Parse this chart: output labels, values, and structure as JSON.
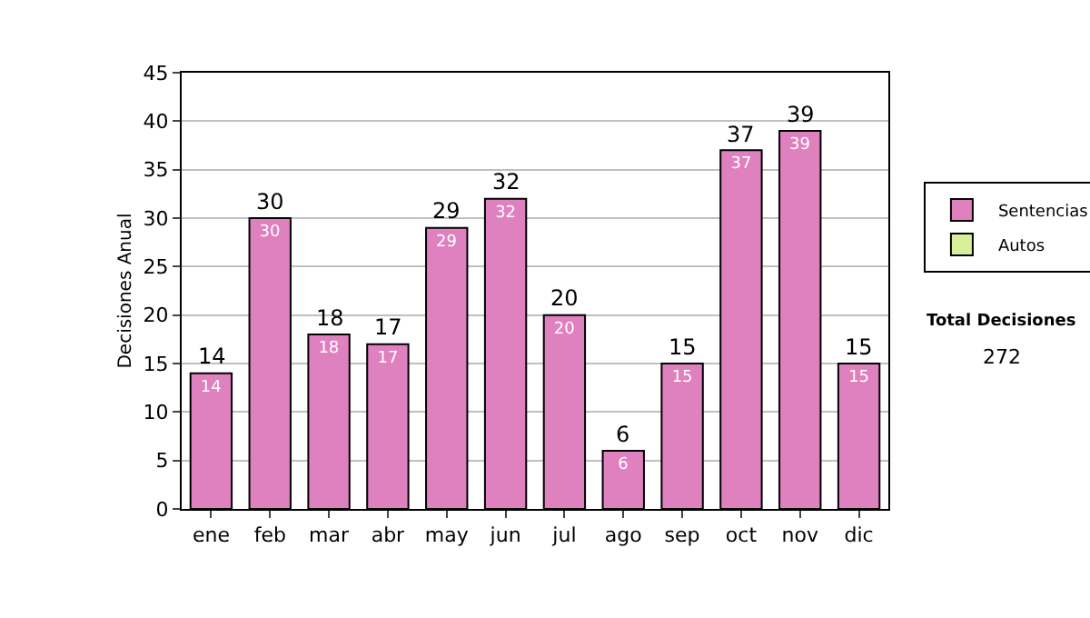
{
  "chart_data": {
    "type": "bar",
    "stacked": true,
    "ylabel": "Decisiones Anual",
    "categories": [
      "ene",
      "feb",
      "mar",
      "abr",
      "may",
      "jun",
      "jul",
      "ago",
      "sep",
      "oct",
      "nov",
      "dic"
    ],
    "series": [
      {
        "name": "Sentencias",
        "color": "#df80bf",
        "values": [
          14,
          30,
          18,
          17,
          29,
          32,
          20,
          6,
          15,
          37,
          39,
          15
        ],
        "value_labels": [
          "14",
          "30",
          "18",
          "17",
          "29",
          "32",
          "20",
          "6",
          "15",
          "37",
          "39",
          "15"
        ]
      },
      {
        "name": "Autos",
        "color": "#d9ee99",
        "values": [
          null,
          null,
          null,
          null,
          null,
          null,
          null,
          null,
          null,
          null,
          null,
          null
        ]
      }
    ],
    "totals": [
      "14",
      "30",
      "18",
      "17",
      "29",
      "32",
      "20",
      "6",
      "15",
      "37",
      "39",
      "15"
    ],
    "ylim": [
      0,
      45
    ],
    "yticks": [
      0,
      5,
      10,
      15,
      20,
      25,
      30,
      35,
      40,
      45
    ],
    "grid": "y",
    "legend": "right",
    "annotations": [
      "Total Decisiones",
      "272"
    ]
  }
}
